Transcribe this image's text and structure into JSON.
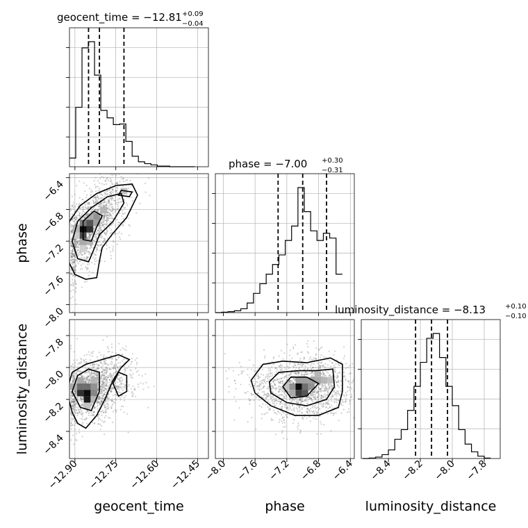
{
  "chart_data": {
    "type": "corner",
    "parameters": [
      "geocent_time",
      "phase",
      "luminosity_distance"
    ],
    "titles": {
      "geocent_time": {
        "name": "geocent_time",
        "median": "−12.81",
        "plus": "+0.09",
        "minus": "−0.04"
      },
      "phase": {
        "name": "phase",
        "median": "−7.00",
        "plus": "+0.30",
        "minus": "−0.31"
      },
      "luminosity_distance": {
        "name": "luminosity_distance",
        "median": "−8.13",
        "plus": "+0.10",
        "minus": "−0.10"
      }
    },
    "ranges": {
      "geocent_time": [
        -12.92,
        -12.41
      ],
      "phase": [
        -8.1,
        -6.35
      ],
      "luminosity_distance": [
        -8.57,
        -7.7
      ]
    },
    "ticks": {
      "geocent_time": {
        "values": [
          -12.9,
          -12.75,
          -12.6,
          -12.45
        ],
        "labels": [
          "−12.90",
          "−12.75",
          "−12.60",
          "−12.45"
        ]
      },
      "phase": {
        "values": [
          -8.0,
          -7.6,
          -7.2,
          -6.8,
          -6.4
        ],
        "labels": [
          "−8.0",
          "−7.6",
          "−7.2",
          "−6.8",
          "−6.4"
        ]
      },
      "luminosity_distance": {
        "values": [
          -8.4,
          -8.2,
          -8.0,
          -7.8
        ],
        "labels": [
          "−8.4",
          "−8.2",
          "−8.0",
          "−7.8"
        ]
      }
    },
    "quantiles": {
      "geocent_time": [
        -12.85,
        -12.81,
        -12.72
      ],
      "phase": [
        -7.31,
        -7.0,
        -6.7
      ],
      "luminosity_distance": [
        -8.23,
        -8.13,
        -8.03
      ]
    },
    "histograms": {
      "geocent_time": {
        "edges": [
          -12.92,
          -12.897,
          -12.874,
          -12.851,
          -12.828,
          -12.805,
          -12.782,
          -12.759,
          -12.736,
          -12.713,
          -12.69,
          -12.667,
          -12.644,
          -12.621,
          -12.598,
          -12.575,
          -12.552,
          -12.529,
          -12.506,
          -12.483,
          -12.46
        ],
        "counts": [
          14,
          96,
          192,
          202,
          148,
          91,
          79,
          68,
          69,
          41,
          17,
          8,
          5,
          3,
          1,
          1,
          0,
          0,
          0,
          0
        ]
      },
      "phase": {
        "edges": [
          -8.1,
          -8.02,
          -7.94,
          -7.86,
          -7.78,
          -7.7,
          -7.62,
          -7.54,
          -7.46,
          -7.38,
          -7.3,
          -7.22,
          -7.14,
          -7.06,
          -6.98,
          -6.9,
          -6.82,
          -6.74,
          -6.66,
          -6.58,
          -6.5
        ],
        "counts": [
          0,
          1,
          2,
          4,
          8,
          20,
          40,
          60,
          80,
          100,
          120,
          150,
          180,
          260,
          210,
          170,
          150,
          165,
          155,
          80
        ]
      },
      "luminosity_distance": {
        "edges": [
          -8.56,
          -8.52,
          -8.48,
          -8.44,
          -8.4,
          -8.36,
          -8.32,
          -8.28,
          -8.24,
          -8.2,
          -8.16,
          -8.12,
          -8.08,
          -8.04,
          -8.0,
          -7.96,
          -7.92,
          -7.88,
          -7.84,
          -7.8,
          -7.76
        ],
        "counts": [
          0,
          1,
          3,
          8,
          18,
          40,
          60,
          100,
          150,
          200,
          250,
          260,
          210,
          150,
          110,
          60,
          30,
          14,
          5,
          1
        ]
      }
    },
    "contours": {
      "phase_vs_geocent_time": [
        [
          [
            -12.9,
            -7.62
          ],
          [
            -12.86,
            -7.68
          ],
          [
            -12.82,
            -7.66
          ],
          [
            -12.81,
            -7.45
          ],
          [
            -12.8,
            -7.28
          ],
          [
            -12.76,
            -7.1
          ],
          [
            -12.71,
            -6.9
          ],
          [
            -12.67,
            -6.62
          ],
          [
            -12.69,
            -6.48
          ],
          [
            -12.75,
            -6.5
          ],
          [
            -12.82,
            -6.6
          ],
          [
            -12.88,
            -6.75
          ],
          [
            -12.92,
            -6.95
          ],
          [
            -12.93,
            -7.25
          ],
          [
            -12.92,
            -7.48
          ],
          [
            -12.9,
            -7.62
          ]
        ],
        [
          [
            -12.89,
            -7.42
          ],
          [
            -12.85,
            -7.46
          ],
          [
            -12.83,
            -7.3
          ],
          [
            -12.81,
            -7.12
          ],
          [
            -12.76,
            -6.95
          ],
          [
            -12.72,
            -6.72
          ],
          [
            -12.73,
            -6.6
          ],
          [
            -12.78,
            -6.64
          ],
          [
            -12.84,
            -6.78
          ],
          [
            -12.89,
            -6.95
          ],
          [
            -12.91,
            -7.2
          ],
          [
            -12.89,
            -7.42
          ]
        ],
        [
          [
            -12.87,
            -7.18
          ],
          [
            -12.84,
            -7.2
          ],
          [
            -12.82,
            -7.02
          ],
          [
            -12.8,
            -6.88
          ],
          [
            -12.83,
            -6.82
          ],
          [
            -12.87,
            -6.95
          ],
          [
            -12.87,
            -7.18
          ]
        ],
        [
          [
            -12.74,
            -6.62
          ],
          [
            -12.7,
            -6.64
          ],
          [
            -12.69,
            -6.58
          ],
          [
            -12.73,
            -6.56
          ],
          [
            -12.74,
            -6.62
          ]
        ]
      ],
      "luminosity_distance_vs_geocent_time": [
        [
          [
            -12.89,
            -8.35
          ],
          [
            -12.86,
            -8.38
          ],
          [
            -12.82,
            -8.3
          ],
          [
            -12.79,
            -8.2
          ],
          [
            -12.76,
            -8.08
          ],
          [
            -12.73,
            -8.0
          ],
          [
            -12.7,
            -7.95
          ],
          [
            -12.74,
            -7.92
          ],
          [
            -12.8,
            -7.95
          ],
          [
            -12.86,
            -7.98
          ],
          [
            -12.91,
            -8.03
          ],
          [
            -12.93,
            -8.15
          ],
          [
            -12.91,
            -8.28
          ],
          [
            -12.89,
            -8.35
          ]
        ],
        [
          [
            -12.88,
            -8.25
          ],
          [
            -12.84,
            -8.27
          ],
          [
            -12.81,
            -8.15
          ],
          [
            -12.81,
            -8.03
          ],
          [
            -12.85,
            -8.01
          ],
          [
            -12.89,
            -8.05
          ],
          [
            -12.91,
            -8.15
          ],
          [
            -12.88,
            -8.25
          ]
        ],
        [
          [
            -12.74,
            -8.18
          ],
          [
            -12.71,
            -8.15
          ],
          [
            -12.71,
            -8.05
          ],
          [
            -12.74,
            -8.03
          ],
          [
            -12.76,
            -8.1
          ],
          [
            -12.74,
            -8.18
          ]
        ]
      ],
      "luminosity_distance_vs_phase": [
        [
          [
            -7.65,
            -8.08
          ],
          [
            -7.5,
            -7.98
          ],
          [
            -7.25,
            -7.96
          ],
          [
            -6.95,
            -7.97
          ],
          [
            -6.65,
            -7.94
          ],
          [
            -6.5,
            -7.98
          ],
          [
            -6.5,
            -8.15
          ],
          [
            -6.55,
            -8.25
          ],
          [
            -6.8,
            -8.3
          ],
          [
            -7.1,
            -8.3
          ],
          [
            -7.4,
            -8.24
          ],
          [
            -7.6,
            -8.16
          ],
          [
            -7.65,
            -8.08
          ]
        ],
        [
          [
            -7.42,
            -8.09
          ],
          [
            -7.3,
            -8.03
          ],
          [
            -7.05,
            -8.02
          ],
          [
            -6.85,
            -8.02
          ],
          [
            -6.62,
            -8.01
          ],
          [
            -6.6,
            -8.12
          ],
          [
            -6.7,
            -8.2
          ],
          [
            -6.95,
            -8.24
          ],
          [
            -7.2,
            -8.22
          ],
          [
            -7.4,
            -8.16
          ],
          [
            -7.42,
            -8.09
          ]
        ],
        [
          [
            -7.25,
            -8.12
          ],
          [
            -7.15,
            -8.06
          ],
          [
            -6.95,
            -8.06
          ],
          [
            -6.8,
            -8.1
          ],
          [
            -6.95,
            -8.18
          ],
          [
            -7.15,
            -8.19
          ],
          [
            -7.25,
            -8.12
          ]
        ]
      ]
    },
    "density": {
      "phase_vs_geocent_time": [
        {
          "x": -12.87,
          "y": -7.05,
          "w": 0.025,
          "h": 0.08,
          "v": 1.0
        },
        {
          "x": -12.845,
          "y": -7.05,
          "w": 0.025,
          "h": 0.08,
          "v": 0.85
        },
        {
          "x": -12.87,
          "y": -7.13,
          "w": 0.025,
          "h": 0.08,
          "v": 0.75
        },
        {
          "x": -12.87,
          "y": -6.97,
          "w": 0.025,
          "h": 0.08,
          "v": 0.55
        },
        {
          "x": -12.845,
          "y": -6.97,
          "w": 0.025,
          "h": 0.08,
          "v": 0.7
        },
        {
          "x": -12.82,
          "y": -6.89,
          "w": 0.025,
          "h": 0.08,
          "v": 0.45
        },
        {
          "x": -12.82,
          "y": -6.97,
          "w": 0.025,
          "h": 0.08,
          "v": 0.4
        },
        {
          "x": -12.87,
          "y": -7.21,
          "w": 0.025,
          "h": 0.08,
          "v": 0.35
        },
        {
          "x": -12.845,
          "y": -7.21,
          "w": 0.025,
          "h": 0.08,
          "v": 0.3
        },
        {
          "x": -12.895,
          "y": -7.05,
          "w": 0.025,
          "h": 0.08,
          "v": 0.3
        },
        {
          "x": -12.845,
          "y": -6.89,
          "w": 0.025,
          "h": 0.08,
          "v": 0.35
        },
        {
          "x": -12.795,
          "y": -6.81,
          "w": 0.025,
          "h": 0.08,
          "v": 0.3
        },
        {
          "x": -12.72,
          "y": -6.57,
          "w": 0.025,
          "h": 0.08,
          "v": 0.25
        },
        {
          "x": -12.87,
          "y": -7.29,
          "w": 0.025,
          "h": 0.08,
          "v": 0.2
        },
        {
          "x": -12.895,
          "y": -7.13,
          "w": 0.025,
          "h": 0.08,
          "v": 0.22
        }
      ],
      "luminosity_distance_vs_geocent_time": [
        {
          "x": -12.88,
          "y": -8.12,
          "w": 0.025,
          "h": 0.04,
          "v": 0.6
        },
        {
          "x": -12.88,
          "y": -8.16,
          "w": 0.025,
          "h": 0.04,
          "v": 0.85
        },
        {
          "x": -12.855,
          "y": -8.16,
          "w": 0.025,
          "h": 0.04,
          "v": 1.0
        },
        {
          "x": -12.855,
          "y": -8.2,
          "w": 0.025,
          "h": 0.04,
          "v": 0.95
        },
        {
          "x": -12.855,
          "y": -8.12,
          "w": 0.025,
          "h": 0.04,
          "v": 0.6
        },
        {
          "x": -12.83,
          "y": -8.12,
          "w": 0.025,
          "h": 0.04,
          "v": 0.45
        },
        {
          "x": -12.83,
          "y": -8.16,
          "w": 0.025,
          "h": 0.04,
          "v": 0.5
        },
        {
          "x": -12.88,
          "y": -8.08,
          "w": 0.025,
          "h": 0.04,
          "v": 0.35
        },
        {
          "x": -12.905,
          "y": -8.12,
          "w": 0.025,
          "h": 0.04,
          "v": 0.35
        },
        {
          "x": -12.83,
          "y": -8.08,
          "w": 0.025,
          "h": 0.04,
          "v": 0.3
        },
        {
          "x": -12.83,
          "y": -8.2,
          "w": 0.025,
          "h": 0.04,
          "v": 0.3
        },
        {
          "x": -12.855,
          "y": -8.24,
          "w": 0.025,
          "h": 0.04,
          "v": 0.25
        }
      ],
      "luminosity_distance_vs_phase": [
        {
          "x": -7.05,
          "y": -8.12,
          "w": 0.08,
          "h": 0.04,
          "v": 1.0
        },
        {
          "x": -7.05,
          "y": -8.16,
          "w": 0.08,
          "h": 0.04,
          "v": 0.8
        },
        {
          "x": -6.97,
          "y": -8.16,
          "w": 0.08,
          "h": 0.04,
          "v": 0.7
        },
        {
          "x": -6.97,
          "y": -8.12,
          "w": 0.08,
          "h": 0.04,
          "v": 0.6
        },
        {
          "x": -7.13,
          "y": -8.12,
          "w": 0.08,
          "h": 0.04,
          "v": 0.45
        },
        {
          "x": -6.97,
          "y": -8.08,
          "w": 0.08,
          "h": 0.04,
          "v": 0.4
        },
        {
          "x": -6.89,
          "y": -8.08,
          "w": 0.08,
          "h": 0.04,
          "v": 0.4
        },
        {
          "x": -6.89,
          "y": -8.12,
          "w": 0.08,
          "h": 0.04,
          "v": 0.45
        },
        {
          "x": -6.81,
          "y": -8.08,
          "w": 0.08,
          "h": 0.04,
          "v": 0.35
        },
        {
          "x": -6.81,
          "y": -8.04,
          "w": 0.08,
          "h": 0.04,
          "v": 0.3
        },
        {
          "x": -7.13,
          "y": -8.16,
          "w": 0.08,
          "h": 0.04,
          "v": 0.35
        },
        {
          "x": -7.05,
          "y": -8.08,
          "w": 0.08,
          "h": 0.04,
          "v": 0.4
        },
        {
          "x": -7.21,
          "y": -8.12,
          "w": 0.08,
          "h": 0.04,
          "v": 0.25
        },
        {
          "x": -6.73,
          "y": -8.08,
          "w": 0.08,
          "h": 0.04,
          "v": 0.3
        },
        {
          "x": -6.65,
          "y": -8.08,
          "w": 0.08,
          "h": 0.04,
          "v": 0.25
        }
      ]
    },
    "scatter_centers": {
      "phase_vs_geocent_time": {
        "x": -12.84,
        "y": -7.0,
        "sx": 0.05,
        "sy": 0.3,
        "corr": 0.65,
        "n": 1500
      },
      "luminosity_distance_vs_geocent_time": {
        "x": -12.83,
        "y": -8.13,
        "sx": 0.05,
        "sy": 0.1,
        "corr": 0.3,
        "n": 1500
      },
      "luminosity_distance_vs_phase": {
        "x": -7.0,
        "y": -8.13,
        "sx": 0.3,
        "sy": 0.1,
        "corr": 0.0,
        "n": 1500
      }
    },
    "grid": true,
    "colors": {
      "lines": "#000000",
      "scatter": "#777777",
      "density": "#000000",
      "grid": "#b0b0b0"
    }
  }
}
